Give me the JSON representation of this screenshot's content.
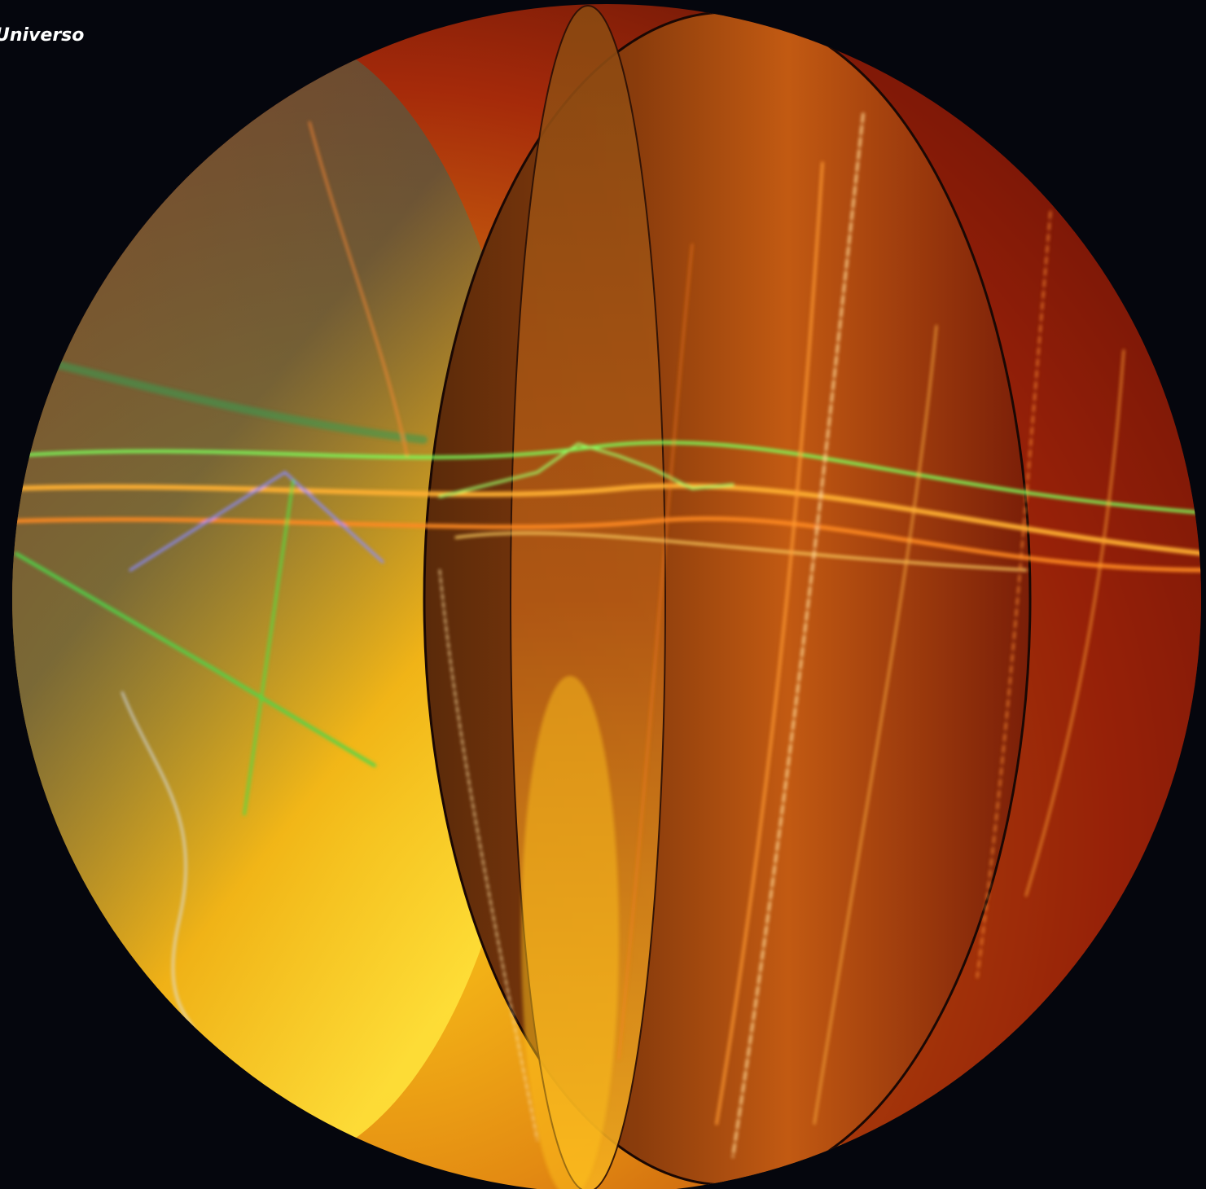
{
  "caption": "Universo"
}
